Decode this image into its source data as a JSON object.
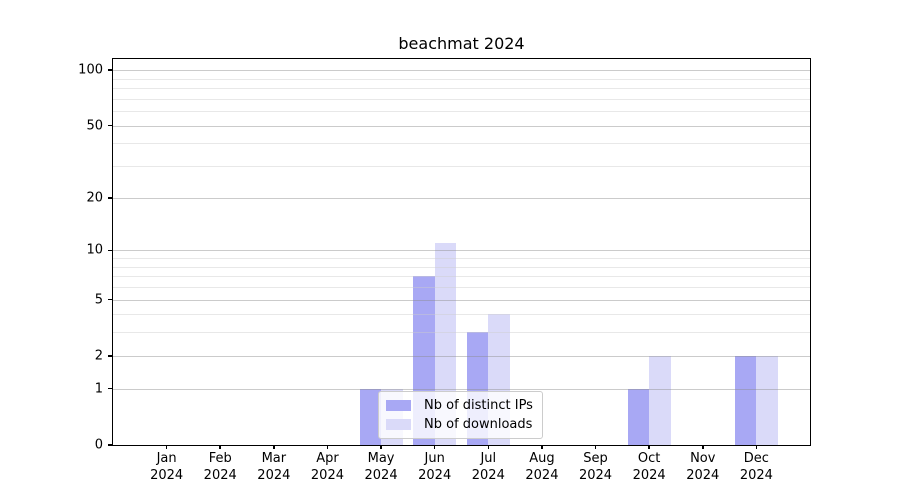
{
  "title": "beachmat 2024",
  "legend": {
    "items": [
      {
        "label": "Nb of distinct IPs",
        "color": "#a8a8f4"
      },
      {
        "label": "Nb of downloads",
        "color": "#dadaf9"
      }
    ]
  },
  "chart_data": {
    "type": "bar",
    "title": "beachmat 2024",
    "categories": [
      "Jan 2024",
      "Feb 2024",
      "Mar 2024",
      "Apr 2024",
      "May 2024",
      "Jun 2024",
      "Jul 2024",
      "Aug 2024",
      "Sep 2024",
      "Oct 2024",
      "Nov 2024",
      "Dec 2024"
    ],
    "series": [
      {
        "name": "Nb of distinct IPs",
        "color": "#a8a8f4",
        "values": [
          0,
          0,
          0,
          0,
          1,
          7,
          3,
          0,
          0,
          1,
          0,
          2
        ]
      },
      {
        "name": "Nb of downloads",
        "color": "#dadaf9",
        "values": [
          0,
          0,
          0,
          0,
          1,
          11,
          4,
          0,
          0,
          2,
          0,
          2
        ]
      }
    ],
    "xlabel": "",
    "ylabel": "",
    "yscale": "log1p",
    "ylim": [
      0,
      115
    ],
    "xlim": [
      -1,
      12
    ],
    "y_ticks": [
      0,
      1,
      2,
      5,
      10,
      20,
      50,
      100
    ],
    "y_minor_ticks": [
      3,
      4,
      6,
      7,
      8,
      9,
      30,
      40,
      60,
      70,
      80,
      90
    ],
    "grid": true,
    "legend_position": "lower center inside plot"
  }
}
